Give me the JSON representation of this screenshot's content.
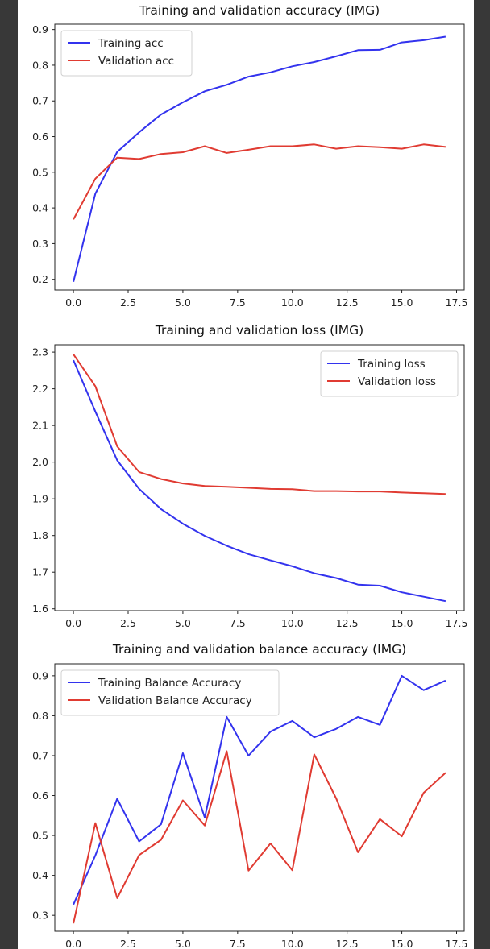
{
  "chart_data": [
    {
      "type": "line",
      "title": "Training and validation accuracy (IMG)",
      "xlabel": "",
      "ylabel": "",
      "xlim": [
        -0.85,
        17.85
      ],
      "ylim": [
        0.17,
        0.915
      ],
      "xticks": [
        0.0,
        2.5,
        5.0,
        7.5,
        10.0,
        12.5,
        15.0,
        17.5
      ],
      "xtick_labels": [
        "0.0",
        "2.5",
        "5.0",
        "7.5",
        "10.0",
        "12.5",
        "15.0",
        "17.5"
      ],
      "yticks": [
        0.2,
        0.3,
        0.4,
        0.5,
        0.6,
        0.7,
        0.8,
        0.9
      ],
      "ytick_labels": [
        "0.2",
        "0.3",
        "0.4",
        "0.5",
        "0.6",
        "0.7",
        "0.8",
        "0.9"
      ],
      "grid": false,
      "legend_position": "upper-left",
      "x": [
        0,
        1,
        2,
        3,
        4,
        5,
        6,
        7,
        8,
        9,
        10,
        11,
        12,
        13,
        14,
        15,
        16,
        17
      ],
      "series": [
        {
          "name": "Training acc",
          "color": "#3333ee",
          "values": [
            0.193,
            0.44,
            0.557,
            0.612,
            0.662,
            0.696,
            0.727,
            0.745,
            0.768,
            0.78,
            0.797,
            0.809,
            0.825,
            0.842,
            0.843,
            0.864,
            0.87,
            0.88
          ]
        },
        {
          "name": "Validation acc",
          "color": "#e03b32",
          "values": [
            0.368,
            0.482,
            0.541,
            0.537,
            0.551,
            0.556,
            0.573,
            0.554,
            0.563,
            0.573,
            0.573,
            0.578,
            0.566,
            0.573,
            0.57,
            0.566,
            0.578,
            0.571
          ]
        }
      ]
    },
    {
      "type": "line",
      "title": "Training and validation loss (IMG)",
      "xlabel": "",
      "ylabel": "",
      "xlim": [
        -0.85,
        17.85
      ],
      "ylim": [
        1.595,
        2.32
      ],
      "xticks": [
        0.0,
        2.5,
        5.0,
        7.5,
        10.0,
        12.5,
        15.0,
        17.5
      ],
      "xtick_labels": [
        "0.0",
        "2.5",
        "5.0",
        "7.5",
        "10.0",
        "12.5",
        "15.0",
        "17.5"
      ],
      "yticks": [
        1.6,
        1.7,
        1.8,
        1.9,
        2.0,
        2.1,
        2.2,
        2.3
      ],
      "ytick_labels": [
        "1.6",
        "1.7",
        "1.8",
        "1.9",
        "2.0",
        "2.1",
        "2.2",
        "2.3"
      ],
      "grid": false,
      "legend_position": "upper-right",
      "x": [
        0,
        1,
        2,
        3,
        4,
        5,
        6,
        7,
        8,
        9,
        10,
        11,
        12,
        13,
        14,
        15,
        16,
        17
      ],
      "series": [
        {
          "name": "Training loss",
          "color": "#3333ee",
          "values": [
            2.278,
            2.138,
            2.005,
            1.927,
            1.872,
            1.832,
            1.799,
            1.772,
            1.749,
            1.732,
            1.716,
            1.697,
            1.684,
            1.666,
            1.663,
            1.645,
            1.633,
            1.621
          ]
        },
        {
          "name": "Validation loss",
          "color": "#e03b32",
          "values": [
            2.294,
            2.207,
            2.043,
            1.973,
            1.954,
            1.942,
            1.935,
            1.933,
            1.93,
            1.927,
            1.926,
            1.921,
            1.921,
            1.92,
            1.92,
            1.917,
            1.915,
            1.913
          ]
        }
      ]
    },
    {
      "type": "line",
      "title": "Training and validation balance accuracy (IMG)",
      "xlabel": "",
      "ylabel": "",
      "xlim": [
        -0.85,
        17.85
      ],
      "ylim": [
        0.26,
        0.93
      ],
      "xticks": [
        0.0,
        2.5,
        5.0,
        7.5,
        10.0,
        12.5,
        15.0,
        17.5
      ],
      "xtick_labels": [
        "0.0",
        "2.5",
        "5.0",
        "7.5",
        "10.0",
        "12.5",
        "15.0",
        "17.5"
      ],
      "yticks": [
        0.3,
        0.4,
        0.5,
        0.6,
        0.7,
        0.8,
        0.9
      ],
      "ytick_labels": [
        "0.3",
        "0.4",
        "0.5",
        "0.6",
        "0.7",
        "0.8",
        "0.9"
      ],
      "grid": false,
      "legend_position": "upper-left",
      "x": [
        0,
        1,
        2,
        3,
        4,
        5,
        6,
        7,
        8,
        9,
        10,
        11,
        12,
        13,
        14,
        15,
        16,
        17
      ],
      "series": [
        {
          "name": "Training Balance Accuracy",
          "color": "#3333ee",
          "values": [
            0.327,
            0.45,
            0.592,
            0.485,
            0.528,
            0.706,
            0.545,
            0.797,
            0.7,
            0.76,
            0.787,
            0.746,
            0.767,
            0.797,
            0.777,
            0.9,
            0.864,
            0.888
          ]
        },
        {
          "name": "Validation Balance Accuracy",
          "color": "#e03b32",
          "values": [
            0.28,
            0.531,
            0.343,
            0.451,
            0.489,
            0.588,
            0.525,
            0.711,
            0.412,
            0.48,
            0.413,
            0.703,
            0.593,
            0.458,
            0.541,
            0.498,
            0.607,
            0.657
          ]
        }
      ]
    }
  ]
}
